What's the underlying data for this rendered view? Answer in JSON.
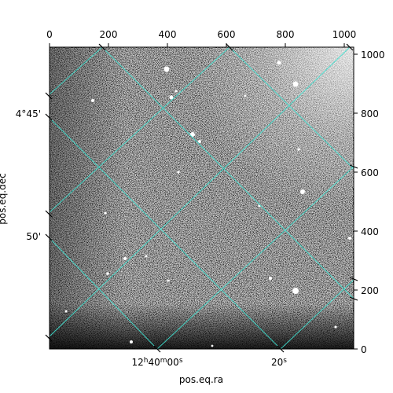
{
  "figure": {
    "xlabel": "pos.eq.ra",
    "ylabel": "pos.eq.dec",
    "top_axis_ticks": [
      "0",
      "200",
      "400",
      "600",
      "800",
      "1000"
    ],
    "right_axis_ticks": [
      "1000",
      "800",
      "600",
      "400",
      "200",
      "0"
    ],
    "left_axis_ticks": [
      "4°45'",
      "50'"
    ],
    "bottom_axis_tick_main": "12",
    "bottom_axis_tick_h": "h",
    "bottom_axis_tick_40": "40",
    "bottom_axis_tick_m": "m",
    "bottom_axis_tick_00": "00",
    "bottom_axis_tick_s1": "s",
    "bottom_axis_tick_20": "20",
    "bottom_axis_tick_s2": "s",
    "grid_color": "#40e0d0",
    "image_style": "grayscale astronomical noise field with stars"
  }
}
